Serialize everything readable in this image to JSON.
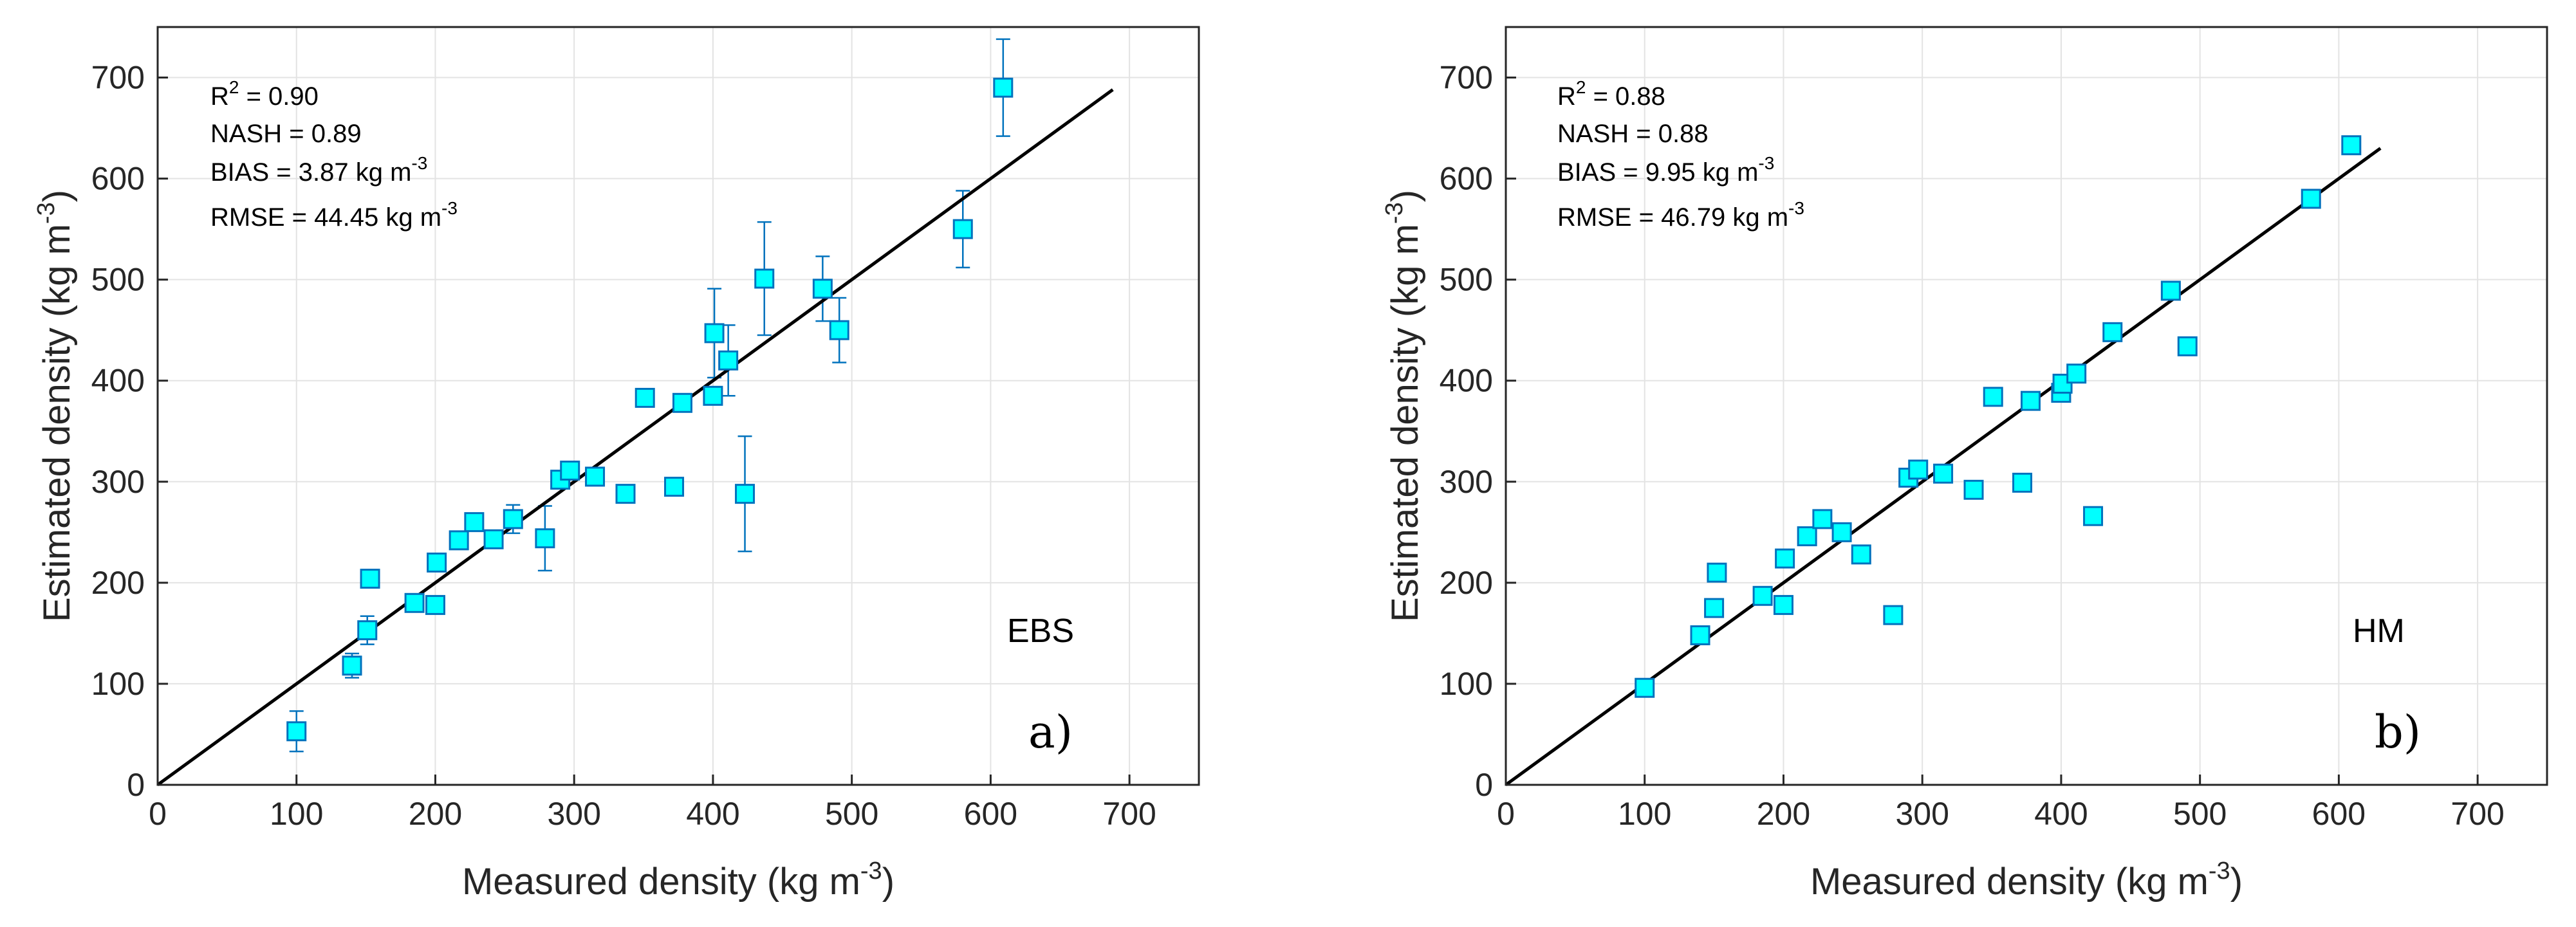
{
  "chart_data": [
    {
      "type": "scatter",
      "panel_label": "a)",
      "model": "EBS",
      "xlabel": "Measured density (kg m",
      "xlabel_sup": "-3",
      "xlabel_end": ")",
      "ylabel": "Estimated density (kg m",
      "ylabel_sup": "-3",
      "ylabel_end": ")",
      "xlim": [
        0,
        750
      ],
      "ylim": [
        0,
        750
      ],
      "xticks": [
        0,
        100,
        200,
        300,
        400,
        500,
        600,
        700
      ],
      "yticks": [
        0,
        100,
        200,
        300,
        400,
        500,
        600,
        700
      ],
      "grid": true,
      "stats": {
        "r2_prefix": "R",
        "r2_sup": "2",
        "r2_value": " = 0.90",
        "nash": "NASH = 0.89",
        "bias": "BIAS = 3.87 kg m",
        "bias_sup": "-3",
        "rmse": "RMSE = 44.45 kg m",
        "rmse_sup": "-3"
      },
      "line": {
        "x": [
          0,
          688
        ],
        "y": [
          0,
          688
        ]
      },
      "points": [
        {
          "x": 100,
          "y": 53,
          "err": 20
        },
        {
          "x": 140,
          "y": 118,
          "err": 12
        },
        {
          "x": 151,
          "y": 153,
          "err": 14
        },
        {
          "x": 153,
          "y": 204,
          "err": 0
        },
        {
          "x": 185,
          "y": 180,
          "err": 0
        },
        {
          "x": 200,
          "y": 178,
          "err": 0
        },
        {
          "x": 201,
          "y": 220,
          "err": 0
        },
        {
          "x": 217,
          "y": 242,
          "err": 0
        },
        {
          "x": 228,
          "y": 260,
          "err": 0
        },
        {
          "x": 242,
          "y": 243,
          "err": 0
        },
        {
          "x": 256,
          "y": 263,
          "err": 14
        },
        {
          "x": 279,
          "y": 244,
          "err": 32
        },
        {
          "x": 290,
          "y": 302,
          "err": 0
        },
        {
          "x": 297,
          "y": 311,
          "err": 0
        },
        {
          "x": 315,
          "y": 305,
          "err": 0
        },
        {
          "x": 337,
          "y": 288,
          "err": 0
        },
        {
          "x": 351,
          "y": 383,
          "err": 0
        },
        {
          "x": 372,
          "y": 295,
          "err": 0
        },
        {
          "x": 378,
          "y": 378,
          "err": 0
        },
        {
          "x": 400,
          "y": 385,
          "err": 0
        },
        {
          "x": 401,
          "y": 447,
          "err": 44
        },
        {
          "x": 411,
          "y": 420,
          "err": 35
        },
        {
          "x": 423,
          "y": 288,
          "err": 57
        },
        {
          "x": 437,
          "y": 501,
          "err": 56
        },
        {
          "x": 479,
          "y": 491,
          "err": 32
        },
        {
          "x": 491,
          "y": 450,
          "err": 32
        },
        {
          "x": 580,
          "y": 550,
          "err": 38
        },
        {
          "x": 609,
          "y": 690,
          "err": 48
        }
      ]
    },
    {
      "type": "scatter",
      "panel_label": "b)",
      "model": "HM",
      "xlabel": "Measured density (kg m",
      "xlabel_sup": "-3",
      "xlabel_end": ")",
      "ylabel": "Estimated density (kg m",
      "ylabel_sup": "-3",
      "ylabel_end": ")",
      "xlim": [
        0,
        750
      ],
      "ylim": [
        0,
        750
      ],
      "xticks": [
        0,
        100,
        200,
        300,
        400,
        500,
        600,
        700
      ],
      "yticks": [
        0,
        100,
        200,
        300,
        400,
        500,
        600,
        700
      ],
      "grid": true,
      "stats": {
        "r2_prefix": "R",
        "r2_sup": "2",
        "r2_value": " = 0.88",
        "nash": "NASH = 0.88",
        "bias": "BIAS = 9.95 kg m",
        "bias_sup": "-3",
        "rmse": "RMSE = 46.79 kg m",
        "rmse_sup": "-3"
      },
      "line": {
        "x": [
          0,
          630
        ],
        "y": [
          0,
          630
        ]
      },
      "points": [
        {
          "x": 100,
          "y": 96,
          "err": 0
        },
        {
          "x": 140,
          "y": 148,
          "err": 0
        },
        {
          "x": 150,
          "y": 175,
          "err": 0
        },
        {
          "x": 152,
          "y": 210,
          "err": 0
        },
        {
          "x": 185,
          "y": 187,
          "err": 0
        },
        {
          "x": 200,
          "y": 178,
          "err": 0
        },
        {
          "x": 201,
          "y": 224,
          "err": 0
        },
        {
          "x": 217,
          "y": 246,
          "err": 0
        },
        {
          "x": 228,
          "y": 263,
          "err": 0
        },
        {
          "x": 242,
          "y": 250,
          "err": 0
        },
        {
          "x": 256,
          "y": 228,
          "err": 0
        },
        {
          "x": 279,
          "y": 168,
          "err": 0
        },
        {
          "x": 290,
          "y": 304,
          "err": 0
        },
        {
          "x": 297,
          "y": 312,
          "err": 0
        },
        {
          "x": 315,
          "y": 308,
          "err": 0
        },
        {
          "x": 337,
          "y": 292,
          "err": 0
        },
        {
          "x": 351,
          "y": 384,
          "err": 0
        },
        {
          "x": 372,
          "y": 299,
          "err": 0
        },
        {
          "x": 378,
          "y": 380,
          "err": 0
        },
        {
          "x": 400,
          "y": 388,
          "err": 0
        },
        {
          "x": 401,
          "y": 397,
          "err": 0
        },
        {
          "x": 411,
          "y": 407,
          "err": 0
        },
        {
          "x": 423,
          "y": 266,
          "err": 0
        },
        {
          "x": 437,
          "y": 448,
          "err": 0
        },
        {
          "x": 479,
          "y": 489,
          "err": 0
        },
        {
          "x": 491,
          "y": 434,
          "err": 0
        },
        {
          "x": 580,
          "y": 580,
          "err": 0
        },
        {
          "x": 609,
          "y": 633,
          "err": 0
        }
      ]
    }
  ]
}
